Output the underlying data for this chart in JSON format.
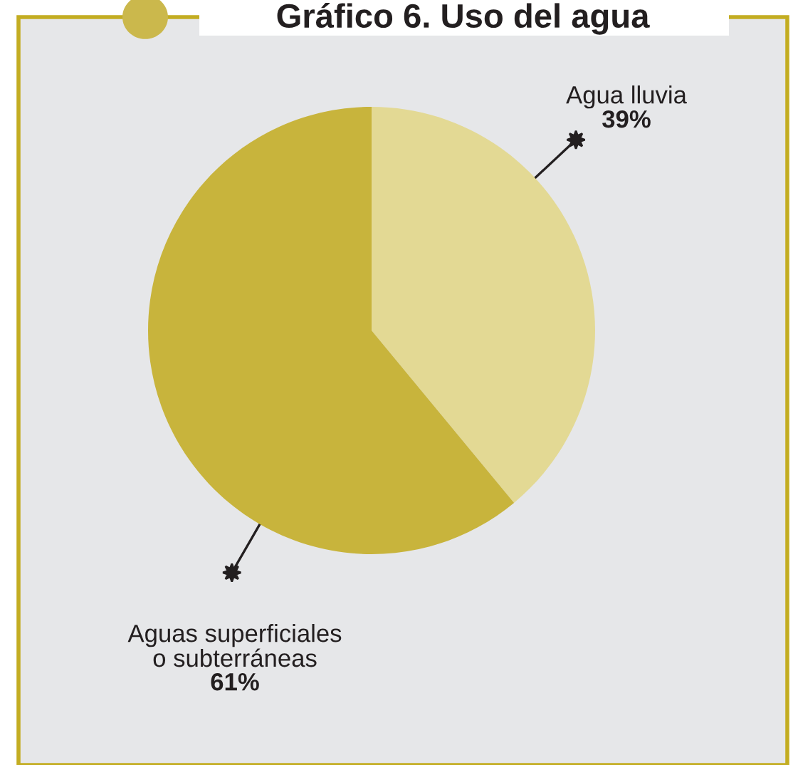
{
  "chart_data": {
    "type": "pie",
    "title": "Gráfico 6. Uso del agua",
    "categories": [
      "Agua lluvia",
      "Aguas superficiales\no subterráneas"
    ],
    "values": [
      39,
      61
    ],
    "colors": [
      "#e3d994",
      "#c8b43c"
    ],
    "value_labels": [
      "39%",
      "61%"
    ]
  }
}
